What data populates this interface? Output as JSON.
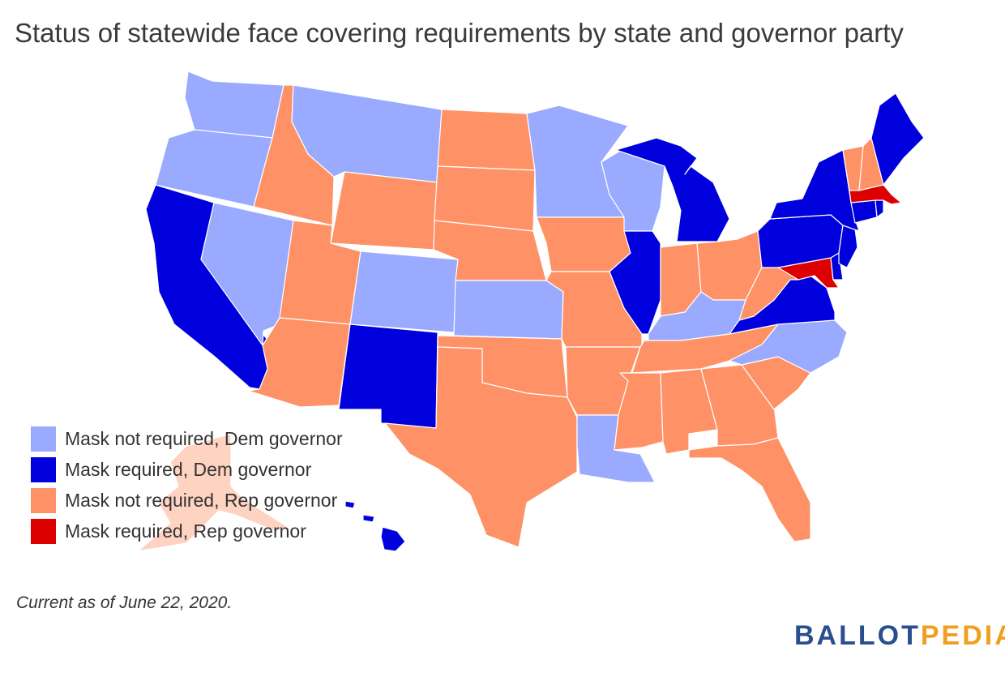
{
  "title": "Status of statewide face covering requirements by state and governor party",
  "legend": [
    {
      "id": "nr_dem",
      "label": "Mask not required, Dem governor",
      "color": "#99aaff"
    },
    {
      "id": "r_dem",
      "label": "Mask required, Dem governor",
      "color": "#0000dd"
    },
    {
      "id": "nr_rep",
      "label": "Mask not required, Rep governor",
      "color": "#ff9166"
    },
    {
      "id": "r_rep",
      "label": "Mask required, Rep governor",
      "color": "#dd0000"
    }
  ],
  "states": {
    "WA": "nr_dem",
    "OR": "nr_dem",
    "CA": "r_dem",
    "NV": "nr_dem",
    "ID": "nr_rep",
    "MT": "nr_dem",
    "WY": "nr_rep",
    "UT": "nr_rep",
    "AZ": "nr_rep",
    "CO": "nr_dem",
    "NM": "r_dem",
    "ND": "nr_rep",
    "SD": "nr_rep",
    "NE": "nr_rep",
    "KS": "nr_dem",
    "OK": "nr_rep",
    "TX": "nr_rep",
    "MN": "nr_dem",
    "IA": "nr_rep",
    "MO": "nr_rep",
    "AR": "nr_rep",
    "LA": "nr_dem",
    "WI": "nr_dem",
    "IL": "r_dem",
    "MI": "r_dem",
    "IN": "nr_rep",
    "OH": "nr_rep",
    "KY": "nr_dem",
    "TN": "nr_rep",
    "MS": "nr_rep",
    "AL": "nr_rep",
    "GA": "nr_rep",
    "FL": "nr_rep",
    "SC": "nr_rep",
    "NC": "nr_dem",
    "VA": "r_dem",
    "WV": "nr_rep",
    "MD": "r_rep",
    "DE": "r_dem",
    "PA": "r_dem",
    "NJ": "r_dem",
    "NY": "r_dem",
    "CT": "r_dem",
    "RI": "r_dem",
    "MA": "r_rep",
    "VT": "nr_rep",
    "NH": "nr_rep",
    "ME": "r_dem",
    "AK": "nr_rep",
    "HI": "r_dem"
  },
  "note": "Current as of June 22, 2020.",
  "logo": {
    "part1": "BALLOT",
    "part2": "PEDIA"
  }
}
